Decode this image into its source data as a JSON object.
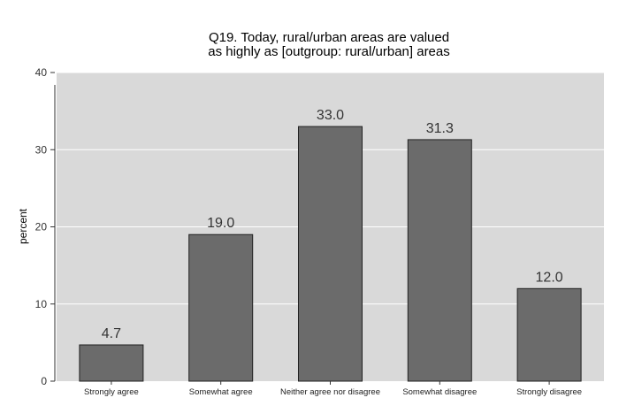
{
  "chart_data": {
    "type": "bar",
    "title": "Q19. Today, rural/urban areas are valued",
    "subtitle": "as highly as [outgroup: rural/urban] areas",
    "xlabel": "",
    "ylabel": "percent",
    "categories": [
      "Strongly agree",
      "Somewhat agree",
      "Neither agree nor disagree",
      "Somewhat disagree",
      "Strongly disagree"
    ],
    "values": [
      4.7,
      19.0,
      33.0,
      31.3,
      12.0
    ],
    "data_labels": [
      "4.7",
      "19.0",
      "33.0",
      "31.3",
      "12.0"
    ],
    "yticks": [
      0,
      10,
      20,
      30,
      40
    ],
    "ylim": [
      0,
      40
    ],
    "grid": true,
    "legend": "none",
    "colors": {
      "panel": "#d9d9d9",
      "bar": "#6b6b6b",
      "bar_edge": "#222222",
      "grid": "#ffffff"
    }
  }
}
